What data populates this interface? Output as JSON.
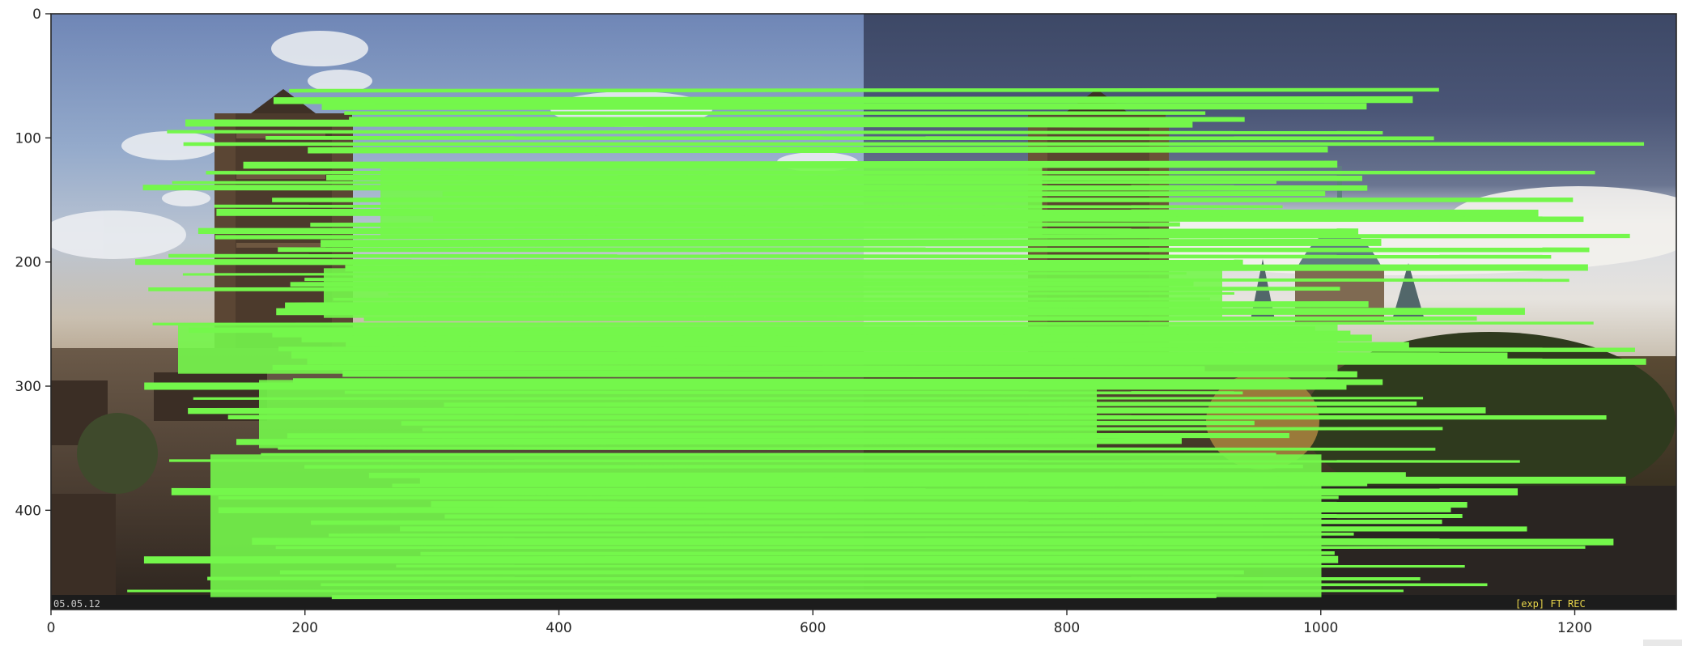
{
  "chart_data": {
    "type": "image",
    "xlim": [
      0,
      1280
    ],
    "ylim": [
      480,
      0
    ],
    "x_ticks": [
      0,
      200,
      400,
      600,
      800,
      1000,
      1200
    ],
    "y_ticks": [
      0,
      100,
      200,
      300,
      400
    ],
    "x_tick_labels": [
      "0",
      "200",
      "400",
      "600",
      "800",
      "1000",
      "1200"
    ],
    "y_tick_labels": [
      "0",
      "100",
      "200",
      "300",
      "400"
    ],
    "grid": false,
    "content": "two side-by-side camera frames of a church tower and city skyline, left and right, overlaid with horizontal feature-match lines",
    "match_line_color": "#74f74b",
    "approx_match_rows_image_y": [
      62,
      70,
      75,
      80,
      85,
      88,
      95,
      100,
      105,
      110,
      122,
      128,
      132,
      136,
      140,
      145,
      150,
      155,
      160,
      165,
      170,
      175,
      180,
      185,
      190,
      195,
      200,
      205,
      210,
      214,
      218,
      222,
      226,
      230,
      235,
      240,
      246,
      250,
      255,
      258,
      262,
      266,
      270,
      275,
      280,
      285,
      290,
      296,
      300,
      305,
      310,
      315,
      320,
      325,
      330,
      335,
      340,
      345,
      350,
      355,
      360,
      365,
      372,
      376,
      380,
      385,
      390,
      395,
      400,
      405,
      410,
      415,
      420,
      425,
      430,
      435,
      440,
      445,
      450,
      455,
      460,
      465,
      470
    ]
  },
  "overlay": {
    "bottom_left_text": "05.05.12",
    "bottom_right_text": "[exp] FT REC"
  }
}
